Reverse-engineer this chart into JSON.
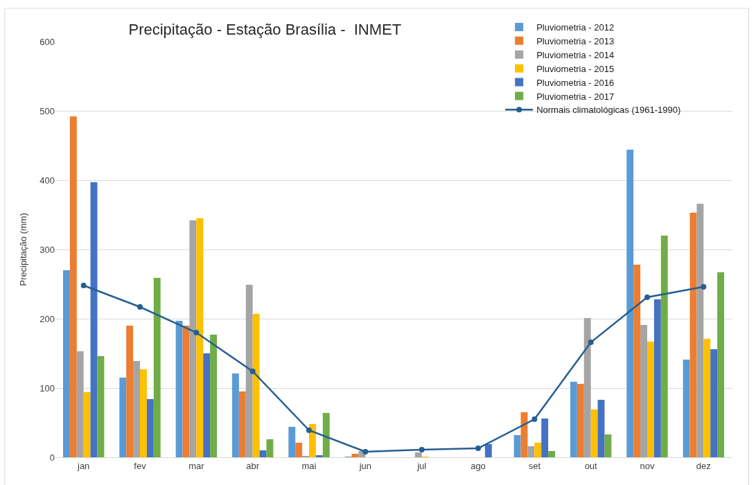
{
  "chart_data": {
    "type": "bar",
    "title": "Precipitação - Estação Brasília -  INMET",
    "ylabel": "Precipitação (mm)",
    "categories": [
      "jan",
      "fev",
      "mar",
      "abr",
      "mai",
      "jun",
      "jul",
      "ago",
      "set",
      "out",
      "nov",
      "dez"
    ],
    "ylim": [
      0,
      600
    ],
    "yticks": [
      0,
      100,
      200,
      300,
      400,
      500,
      600
    ],
    "grid": "y",
    "legend": "top right",
    "series": [
      {
        "name": "Pluviometria - 2012",
        "color": "#5b9bd5",
        "values": [
          270,
          115,
          197,
          121,
          44,
          1,
          null,
          null,
          32,
          109,
          444,
          141
        ]
      },
      {
        "name": "Pluviometria - 2013",
        "color": "#ed7d31",
        "values": [
          492,
          190,
          190,
          95,
          21,
          5,
          null,
          null,
          65,
          106,
          278,
          353
        ]
      },
      {
        "name": "Pluviometria - 2014",
        "color": "#a5a5a5",
        "values": [
          153,
          139,
          342,
          249,
          2,
          9,
          7,
          null,
          16,
          201,
          191,
          366
        ]
      },
      {
        "name": "Pluviometria - 2015",
        "color": "#ffc000",
        "values": [
          94,
          127,
          345,
          207,
          48,
          null,
          1,
          null,
          21,
          69,
          167,
          171
        ]
      },
      {
        "name": "Pluviometria - 2016",
        "color": "#4472c4",
        "values": [
          397,
          84,
          150,
          10,
          3,
          null,
          null,
          19,
          56,
          83,
          228,
          156
        ]
      },
      {
        "name": "Pluviometria - 2017",
        "color": "#70ad47",
        "values": [
          146,
          259,
          177,
          26,
          64,
          null,
          null,
          null,
          9,
          33,
          320,
          267
        ]
      },
      {
        "name": "Normais climatológicas (1961-1990)",
        "type": "line",
        "color": "#255e91",
        "marker": "circle",
        "line_style": "solid",
        "values": [
          248,
          217,
          180,
          124,
          39,
          8,
          11,
          13,
          55,
          166,
          231,
          246
        ]
      }
    ]
  }
}
